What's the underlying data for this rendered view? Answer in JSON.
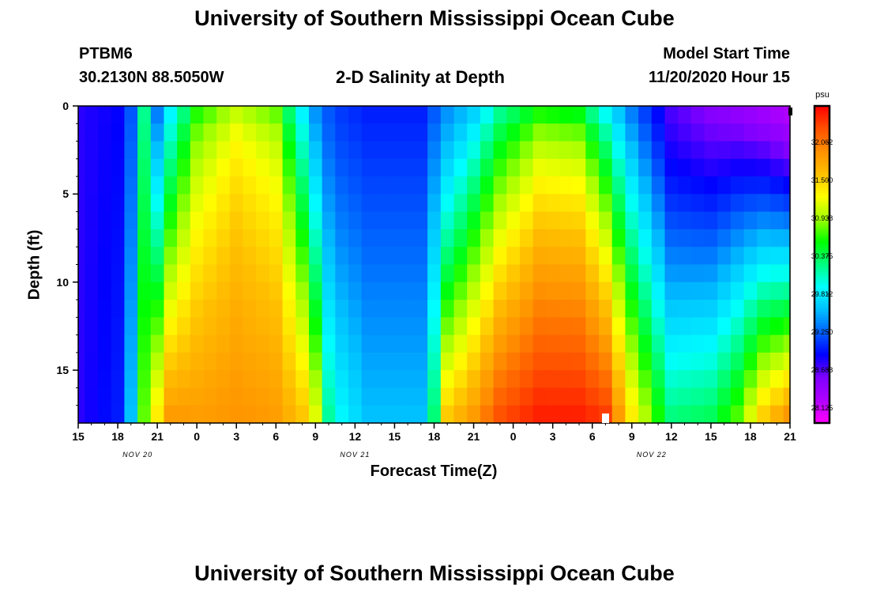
{
  "header": {
    "title": "University of Southern Mississippi Ocean Cube",
    "footer_title": "University of Southern Mississippi Ocean Cube",
    "station": "PTBM6",
    "coords": "30.2130N 88.5050W",
    "subtitle": "2-D Salinity at Depth",
    "model_start_label": "Model Start Time",
    "model_start_value": "11/20/2020 Hour 15"
  },
  "colors": {
    "palette": [
      "#ff00ff",
      "#b000ff",
      "#8000ff",
      "#0000ff",
      "#0060ff",
      "#00c0ff",
      "#00ffff",
      "#00ff80",
      "#00ff00",
      "#a0ff00",
      "#ffff00",
      "#ffc000",
      "#ff9000",
      "#ff5000",
      "#ff0000"
    ],
    "frame": "#000000"
  },
  "chart_data": {
    "type": "heatmap",
    "title": "2-D Salinity at Depth",
    "xlabel": "Forecast Time(Z)",
    "ylabel": "Depth (ft)",
    "units": "psu",
    "x_tick_labels": [
      "15",
      "18",
      "21",
      "0",
      "3",
      "6",
      "9",
      "12",
      "15",
      "18",
      "21",
      "0",
      "3",
      "6",
      "9",
      "12",
      "15",
      "18",
      "21"
    ],
    "x_date_labels": [
      "NOV 20",
      "NOV 21",
      "NOV 22"
    ],
    "y_tick_labels": [
      "0",
      "5",
      "10",
      "15"
    ],
    "ylim": [
      0,
      18
    ],
    "xlim_hours": [
      0,
      54
    ],
    "colorbar_ticks": [
      "32.062",
      "31.500",
      "30.938",
      "30.375",
      "29.812",
      "29.250",
      "28.688",
      "28.125"
    ],
    "colorbar_range": [
      27.9,
      32.6
    ],
    "x_hours": [
      0,
      1,
      2,
      3,
      4,
      5,
      6,
      7,
      8,
      9,
      10,
      11,
      12,
      13,
      14,
      15,
      16,
      17,
      18,
      19,
      20,
      21,
      22,
      23,
      24,
      25,
      26,
      27,
      28,
      29,
      30,
      31,
      32,
      33,
      34,
      35,
      36,
      37,
      38,
      39,
      40,
      41,
      42,
      43,
      44,
      45,
      46,
      47,
      48,
      49,
      50,
      51,
      52,
      53,
      54
    ],
    "depths_ft": [
      0.5,
      1.5,
      2.5,
      3.5,
      4.5,
      5.5,
      6.5,
      7.5,
      8.5,
      9.5,
      10.5,
      11.5,
      12.5,
      13.5,
      14.5,
      15.5,
      16.5,
      17.5
    ],
    "salinity_profiles": [
      {
        "hour": 0,
        "surface": 28.8,
        "bottom": 28.8,
        "power": 1.0
      },
      {
        "hour": 3,
        "surface": 28.9,
        "bottom": 29.0,
        "power": 1.0
      },
      {
        "hour": 4,
        "surface": 29.2,
        "bottom": 29.6,
        "power": 1.0
      },
      {
        "hour": 5,
        "surface": 30.2,
        "bottom": 30.8,
        "power": 1.0
      },
      {
        "hour": 6,
        "surface": 29.3,
        "bottom": 31.4,
        "power": 1.0
      },
      {
        "hour": 7,
        "surface": 29.8,
        "bottom": 31.9,
        "power": 0.9
      },
      {
        "hour": 9,
        "surface": 30.5,
        "bottom": 31.85,
        "power": 0.6
      },
      {
        "hour": 12,
        "surface": 30.8,
        "bottom": 31.9,
        "power": 0.4
      },
      {
        "hour": 15,
        "surface": 30.6,
        "bottom": 31.85,
        "power": 0.5
      },
      {
        "hour": 17,
        "surface": 29.8,
        "bottom": 31.6,
        "power": 0.9
      },
      {
        "hour": 18,
        "surface": 29.4,
        "bottom": 31.2,
        "power": 1.1
      },
      {
        "hour": 19,
        "surface": 29.2,
        "bottom": 30.2,
        "power": 1.2
      },
      {
        "hour": 20,
        "surface": 29.1,
        "bottom": 29.9,
        "power": 1.2
      },
      {
        "hour": 22,
        "surface": 29.0,
        "bottom": 29.6,
        "power": 1.0
      },
      {
        "hour": 26,
        "surface": 29.0,
        "bottom": 29.6,
        "power": 1.0
      },
      {
        "hour": 27,
        "surface": 29.2,
        "bottom": 30.3,
        "power": 1.0
      },
      {
        "hour": 28,
        "surface": 29.4,
        "bottom": 31.6,
        "power": 1.2
      },
      {
        "hour": 30,
        "surface": 29.6,
        "bottom": 31.9,
        "power": 0.9
      },
      {
        "hour": 32,
        "surface": 30.1,
        "bottom": 32.3,
        "power": 0.8
      },
      {
        "hour": 35,
        "surface": 30.4,
        "bottom": 32.5,
        "power": 0.6
      },
      {
        "hour": 38,
        "surface": 30.3,
        "bottom": 32.5,
        "power": 0.6
      },
      {
        "hour": 40,
        "surface": 29.8,
        "bottom": 32.4,
        "power": 0.8
      },
      {
        "hour": 42,
        "surface": 29.3,
        "bottom": 31.4,
        "power": 1.0
      },
      {
        "hour": 45,
        "surface": 28.7,
        "bottom": 30.3,
        "power": 1.2
      },
      {
        "hour": 48,
        "surface": 28.5,
        "bottom": 30.4,
        "power": 1.1
      },
      {
        "hour": 50,
        "surface": 28.4,
        "bottom": 30.8,
        "power": 1.0
      },
      {
        "hour": 52,
        "surface": 28.3,
        "bottom": 31.6,
        "power": 1.1
      },
      {
        "hour": 54,
        "surface": 28.2,
        "bottom": 32.0,
        "power": 1.2
      }
    ]
  }
}
